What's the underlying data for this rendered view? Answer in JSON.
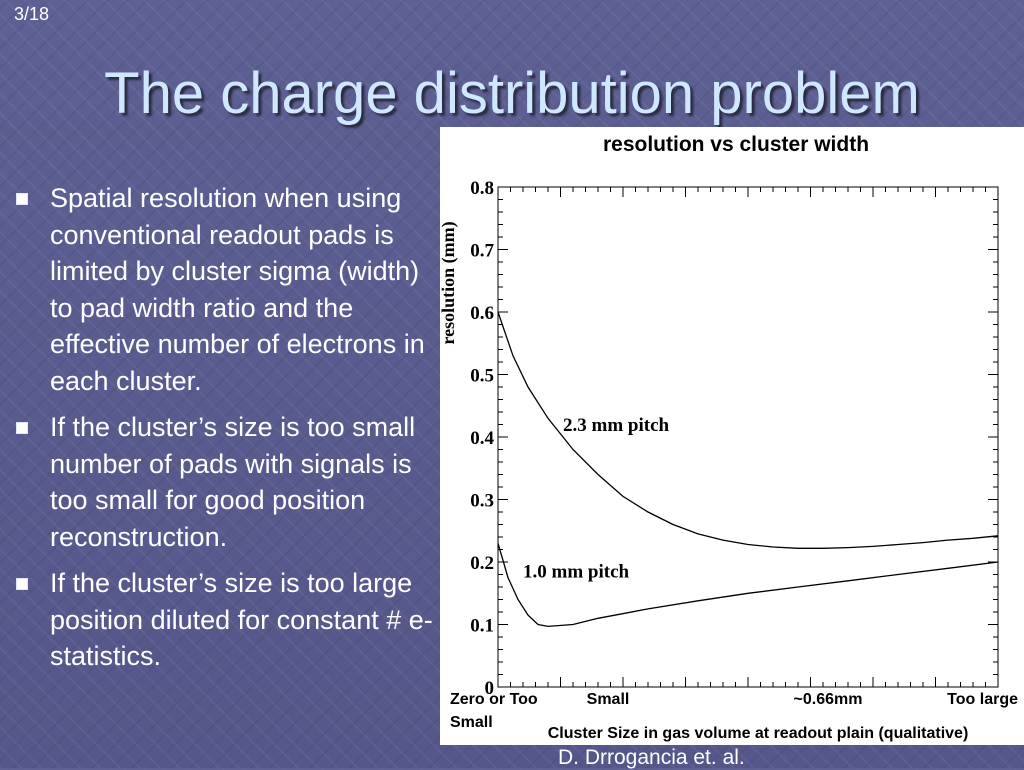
{
  "slide_number": "3/18",
  "title": "The charge distribution problem",
  "bullets": [
    "Spatial resolution when using conventional readout pads is limited by cluster sigma (width) to pad width ratio and the effective number of electrons in each cluster.",
    "If the cluster’s size is too small number of pads with signals is too small for good position reconstruction.",
    "If the cluster’s size is too large position diluted for constant # e- statistics."
  ],
  "credit": "D. Drrogancia et. al.",
  "chart_data": {
    "type": "line",
    "title": "resolution vs cluster width",
    "ylabel": "resolution (mm)",
    "xlabel": "Cluster Size in gas volume at readout plain (qualitative)",
    "ylim": [
      0,
      0.8
    ],
    "xlim": [
      0,
      1
    ],
    "yticks": [
      "0",
      "0.1",
      "0.2",
      "0.3",
      "0.4",
      "0.5",
      "0.6",
      "0.7",
      "0.8"
    ],
    "x_category_labels": [
      {
        "text": "Zero or Too Small",
        "x": 0.0
      },
      {
        "text": "Small",
        "x": 0.22
      },
      {
        "text": "~0.66mm",
        "x": 0.66
      },
      {
        "text": "Too large",
        "x": 1.0
      }
    ],
    "series": [
      {
        "name": "2.3 mm pitch",
        "x": [
          0.0,
          0.03,
          0.06,
          0.1,
          0.15,
          0.2,
          0.25,
          0.3,
          0.35,
          0.4,
          0.45,
          0.5,
          0.55,
          0.6,
          0.65,
          0.7,
          0.75,
          0.8,
          0.85,
          0.9,
          0.95,
          1.0
        ],
        "values": [
          0.6,
          0.53,
          0.48,
          0.43,
          0.38,
          0.34,
          0.305,
          0.28,
          0.26,
          0.245,
          0.235,
          0.228,
          0.224,
          0.222,
          0.222,
          0.223,
          0.225,
          0.228,
          0.231,
          0.235,
          0.238,
          0.242
        ]
      },
      {
        "name": "1.0 mm pitch",
        "x": [
          0.0,
          0.02,
          0.04,
          0.06,
          0.08,
          0.1,
          0.15,
          0.2,
          0.3,
          0.4,
          0.5,
          0.6,
          0.7,
          0.8,
          0.9,
          1.0
        ],
        "values": [
          0.23,
          0.175,
          0.14,
          0.115,
          0.1,
          0.097,
          0.1,
          0.11,
          0.125,
          0.138,
          0.15,
          0.16,
          0.17,
          0.18,
          0.19,
          0.2
        ]
      }
    ],
    "annotations": [
      {
        "text": "2.3 mm pitch",
        "series": 0,
        "at_x": 0.13,
        "at_y": 0.41
      },
      {
        "text": "1.0 mm pitch",
        "series": 1,
        "at_x": 0.05,
        "at_y": 0.175
      }
    ],
    "grid": false,
    "axis_color": "#000000",
    "line_color": "#000000"
  }
}
